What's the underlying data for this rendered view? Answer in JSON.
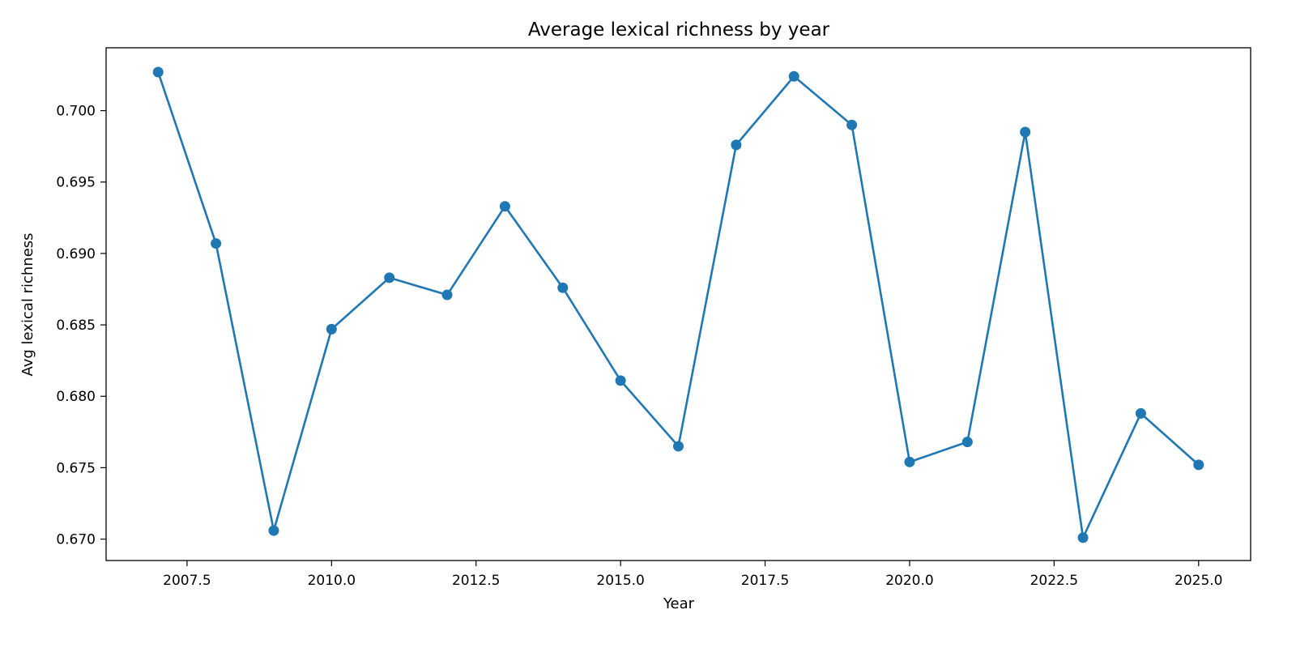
{
  "chart_data": {
    "type": "line",
    "title": "Average lexical richness by year",
    "xlabel": "Year",
    "ylabel": "Avg lexical richness",
    "xlim": [
      2006.1,
      2025.9
    ],
    "ylim": [
      0.6685,
      0.7044
    ],
    "xticks": [
      2007.5,
      2010.0,
      2012.5,
      2015.0,
      2017.5,
      2020.0,
      2022.5,
      2025.0
    ],
    "xtick_labels": [
      "2007.5",
      "2010.0",
      "2012.5",
      "2015.0",
      "2017.5",
      "2020.0",
      "2022.5",
      "2025.0"
    ],
    "yticks": [
      0.67,
      0.675,
      0.68,
      0.685,
      0.69,
      0.695,
      0.7
    ],
    "ytick_labels": [
      "0.670",
      "0.675",
      "0.680",
      "0.685",
      "0.690",
      "0.695",
      "0.700"
    ],
    "grid": false,
    "series": [
      {
        "color": "#1f77b4",
        "marker": "circle",
        "x": [
          2007,
          2008,
          2009,
          2010,
          2011,
          2012,
          2013,
          2014,
          2015,
          2016,
          2017,
          2018,
          2019,
          2020,
          2021,
          2022,
          2023,
          2024,
          2025
        ],
        "y": [
          0.7027,
          0.6907,
          0.6706,
          0.6847,
          0.6883,
          0.6871,
          0.6933,
          0.6876,
          0.6811,
          0.6765,
          0.6976,
          0.7024,
          0.699,
          0.6754,
          0.6768,
          0.6985,
          0.6701,
          0.6788,
          0.6752
        ]
      }
    ]
  }
}
